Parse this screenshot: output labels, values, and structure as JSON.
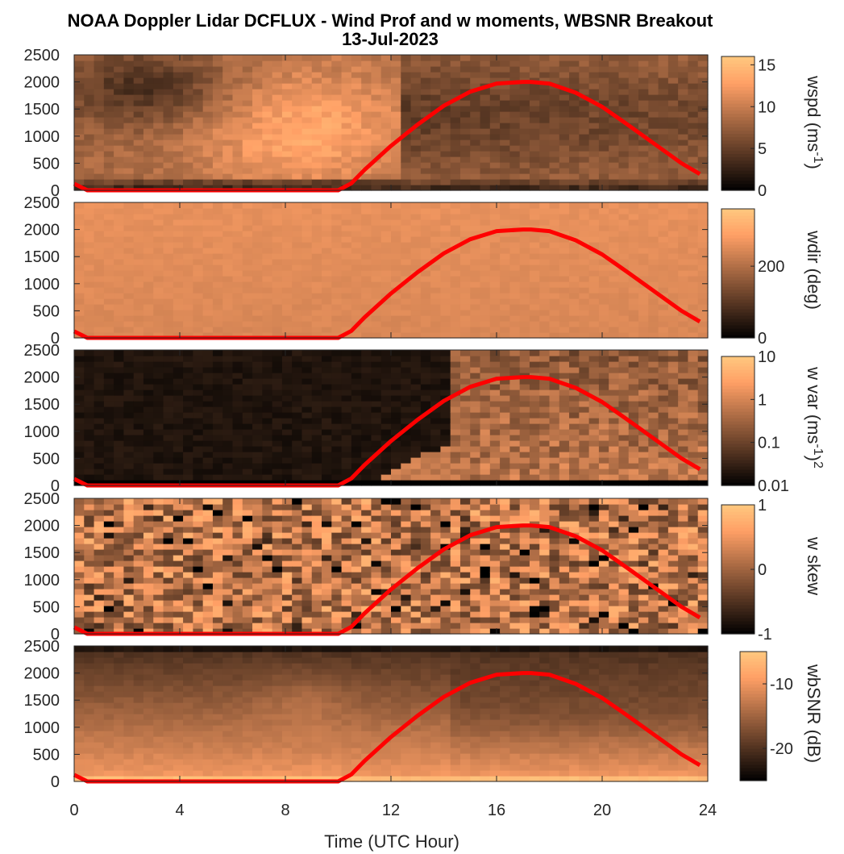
{
  "title": "NOAA Doppler Lidar DCFLUX - Wind Prof and w moments, WBSNR Breakout",
  "subtitle": "13-Jul-2023",
  "chart_data": {
    "type": "heatmap",
    "colormap": "copper",
    "line_color": "#ff0000",
    "xlabel": "Time (UTC Hour)",
    "xlim": [
      0,
      24
    ],
    "xticks": [
      "0",
      "4",
      "8",
      "12",
      "16",
      "20",
      "24"
    ],
    "xtick_values": [
      0,
      4,
      8,
      12,
      16,
      20,
      24
    ],
    "ylim": [
      0,
      2500
    ],
    "yticks": [
      "0",
      "500",
      "1000",
      "1500",
      "2000",
      "2500"
    ],
    "ytick_values": [
      0,
      500,
      1000,
      1500,
      2000,
      2500
    ],
    "overlay_line": {
      "x": [
        0,
        0.5,
        1,
        2,
        3,
        4,
        5,
        6,
        7,
        8,
        9,
        10,
        10.5,
        11,
        12,
        13,
        14,
        15,
        16,
        17,
        17.3,
        18,
        19,
        20,
        21,
        22,
        23,
        23.7
      ],
      "y": [
        120,
        0,
        0,
        0,
        0,
        0,
        0,
        0,
        0,
        0,
        0,
        0,
        130,
        380,
        820,
        1210,
        1560,
        1820,
        1970,
        2000,
        2000,
        1970,
        1800,
        1540,
        1200,
        850,
        500,
        300
      ]
    },
    "panels": [
      {
        "ylabel": "wspd (ms-1)",
        "cbar_ticks": [
          "0",
          "5",
          "10",
          "15"
        ],
        "cbar_values": [
          0,
          5,
          10,
          15
        ],
        "clim": [
          0,
          16
        ]
      },
      {
        "ylabel": "wdir (deg)",
        "cbar_ticks": [
          "0",
          "200"
        ],
        "cbar_values": [
          0,
          200
        ],
        "clim": [
          0,
          360
        ]
      },
      {
        "ylabel": "w var (ms-1)2",
        "cbar_ticks": [
          "0.01",
          "0.1",
          "1",
          "10"
        ],
        "cbar_values": [
          0.01,
          0.1,
          1,
          10
        ],
        "clim": [
          0.01,
          10
        ],
        "scale": "log"
      },
      {
        "ylabel": "w skew",
        "cbar_ticks": [
          "-1",
          "0",
          "1"
        ],
        "cbar_values": [
          -1,
          0,
          1
        ],
        "clim": [
          -1,
          1
        ]
      },
      {
        "ylabel": "wbSNR (dB)",
        "cbar_ticks": [
          "-20",
          "-10"
        ],
        "cbar_values": [
          -20,
          -10
        ],
        "clim": [
          -25,
          -5
        ]
      }
    ]
  }
}
